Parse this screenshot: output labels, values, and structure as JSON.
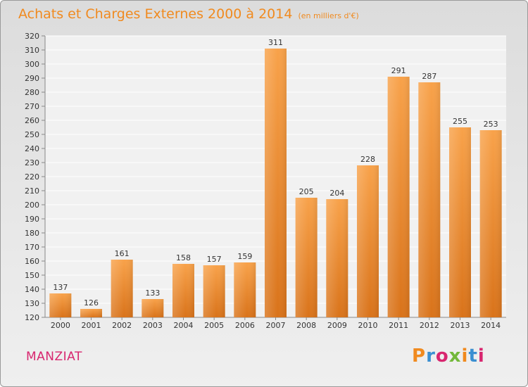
{
  "chart_data": {
    "type": "bar",
    "title": "Achats et Charges Externes 2000 à 2014",
    "subtitle": "(en milliers d'€)",
    "categories": [
      "2000",
      "2001",
      "2002",
      "2003",
      "2004",
      "2005",
      "2006",
      "2007",
      "2008",
      "2009",
      "2010",
      "2011",
      "2012",
      "2013",
      "2014"
    ],
    "values": [
      137,
      126,
      161,
      133,
      158,
      157,
      159,
      311,
      205,
      204,
      228,
      291,
      287,
      255,
      253
    ],
    "ylim": [
      120,
      320
    ],
    "yticks": [
      120,
      130,
      140,
      150,
      160,
      170,
      180,
      190,
      200,
      210,
      220,
      230,
      240,
      250,
      260,
      270,
      280,
      290,
      300,
      310,
      320
    ],
    "grid": true,
    "bar_color": "#f08a1f",
    "label_color": "#333333"
  },
  "footer": {
    "commune": "MANZIAT",
    "logo": "Proxiti",
    "logo_colors": [
      "#f08a1f",
      "#3a8fd1",
      "#d8266f",
      "#73b83a",
      "#f08a1f",
      "#3a8fd1",
      "#d8266f"
    ]
  }
}
